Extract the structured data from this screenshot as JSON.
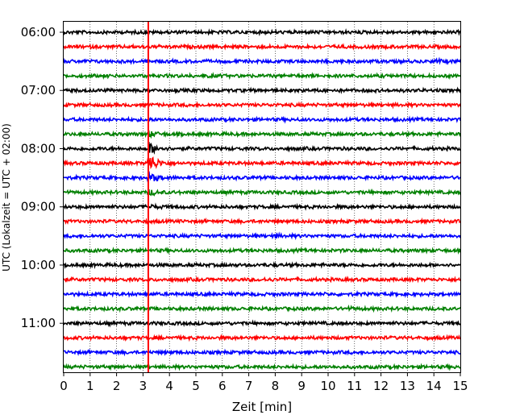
{
  "chart_data": {
    "type": "line",
    "subtype": "helicorder-seismogram",
    "title": "",
    "xlabel": "Zeit  [min]",
    "ylabel": "UTC (Lokalzeit = UTC + 02:00)",
    "xlim": [
      0,
      15
    ],
    "x_ticks": [
      "0",
      "1",
      "2",
      "3",
      "4",
      "5",
      "6",
      "7",
      "8",
      "9",
      "10",
      "11",
      "12",
      "13",
      "14",
      "15"
    ],
    "y_tick_labels": [
      "06:00",
      "07:00",
      "08:00",
      "09:00",
      "10:00",
      "11:00"
    ],
    "y_tick_rows": [
      0,
      4,
      8,
      12,
      16,
      20
    ],
    "grid": {
      "x": true,
      "style": "dotted"
    },
    "trace_interval_min": 15,
    "trace_colors": [
      "#000000",
      "#ff0000",
      "#0000ff",
      "#008000"
    ],
    "rows": [
      {
        "start": "06:00",
        "color": "#000000"
      },
      {
        "start": "06:15",
        "color": "#ff0000"
      },
      {
        "start": "06:30",
        "color": "#0000ff"
      },
      {
        "start": "06:45",
        "color": "#008000"
      },
      {
        "start": "07:00",
        "color": "#000000"
      },
      {
        "start": "07:15",
        "color": "#ff0000"
      },
      {
        "start": "07:30",
        "color": "#0000ff"
      },
      {
        "start": "07:45",
        "color": "#008000"
      },
      {
        "start": "08:00",
        "color": "#000000"
      },
      {
        "start": "08:15",
        "color": "#ff0000"
      },
      {
        "start": "08:30",
        "color": "#0000ff"
      },
      {
        "start": "08:45",
        "color": "#008000"
      },
      {
        "start": "09:00",
        "color": "#000000"
      },
      {
        "start": "09:15",
        "color": "#ff0000"
      },
      {
        "start": "09:30",
        "color": "#0000ff"
      },
      {
        "start": "09:45",
        "color": "#008000"
      },
      {
        "start": "10:00",
        "color": "#000000"
      },
      {
        "start": "10:15",
        "color": "#ff0000"
      },
      {
        "start": "10:30",
        "color": "#0000ff"
      },
      {
        "start": "10:45",
        "color": "#008000"
      },
      {
        "start": "11:00",
        "color": "#000000"
      },
      {
        "start": "11:15",
        "color": "#ff0000"
      },
      {
        "start": "11:30",
        "color": "#0000ff"
      },
      {
        "start": "11:45",
        "color": "#008000"
      }
    ],
    "event_marker": {
      "x_min": 3.2,
      "color": "#ff0000"
    },
    "events": [
      {
        "row": 2,
        "x_min": 14.1,
        "amplitude": 0.7
      },
      {
        "row": 3,
        "x_min": 5.3,
        "amplitude": 0.4
      },
      {
        "row": 7,
        "x_min": 3.2,
        "amplitude": 1.4
      },
      {
        "row": 8,
        "x_min": 3.2,
        "amplitude": 3.5
      },
      {
        "row": 9,
        "x_min": 3.2,
        "amplitude": 6.0
      },
      {
        "row": 10,
        "x_min": 3.2,
        "amplitude": 3.0
      },
      {
        "row": 11,
        "x_min": 3.2,
        "amplitude": 1.6
      },
      {
        "row": 12,
        "x_min": 3.2,
        "amplitude": 1.0
      },
      {
        "row": 14,
        "x_min": 7.9,
        "amplitude": 0.6
      },
      {
        "row": 17,
        "x_min": 7.6,
        "amplitude": 0.4
      },
      {
        "row": 19,
        "x_min": 10.7,
        "amplitude": 0.5
      }
    ]
  }
}
